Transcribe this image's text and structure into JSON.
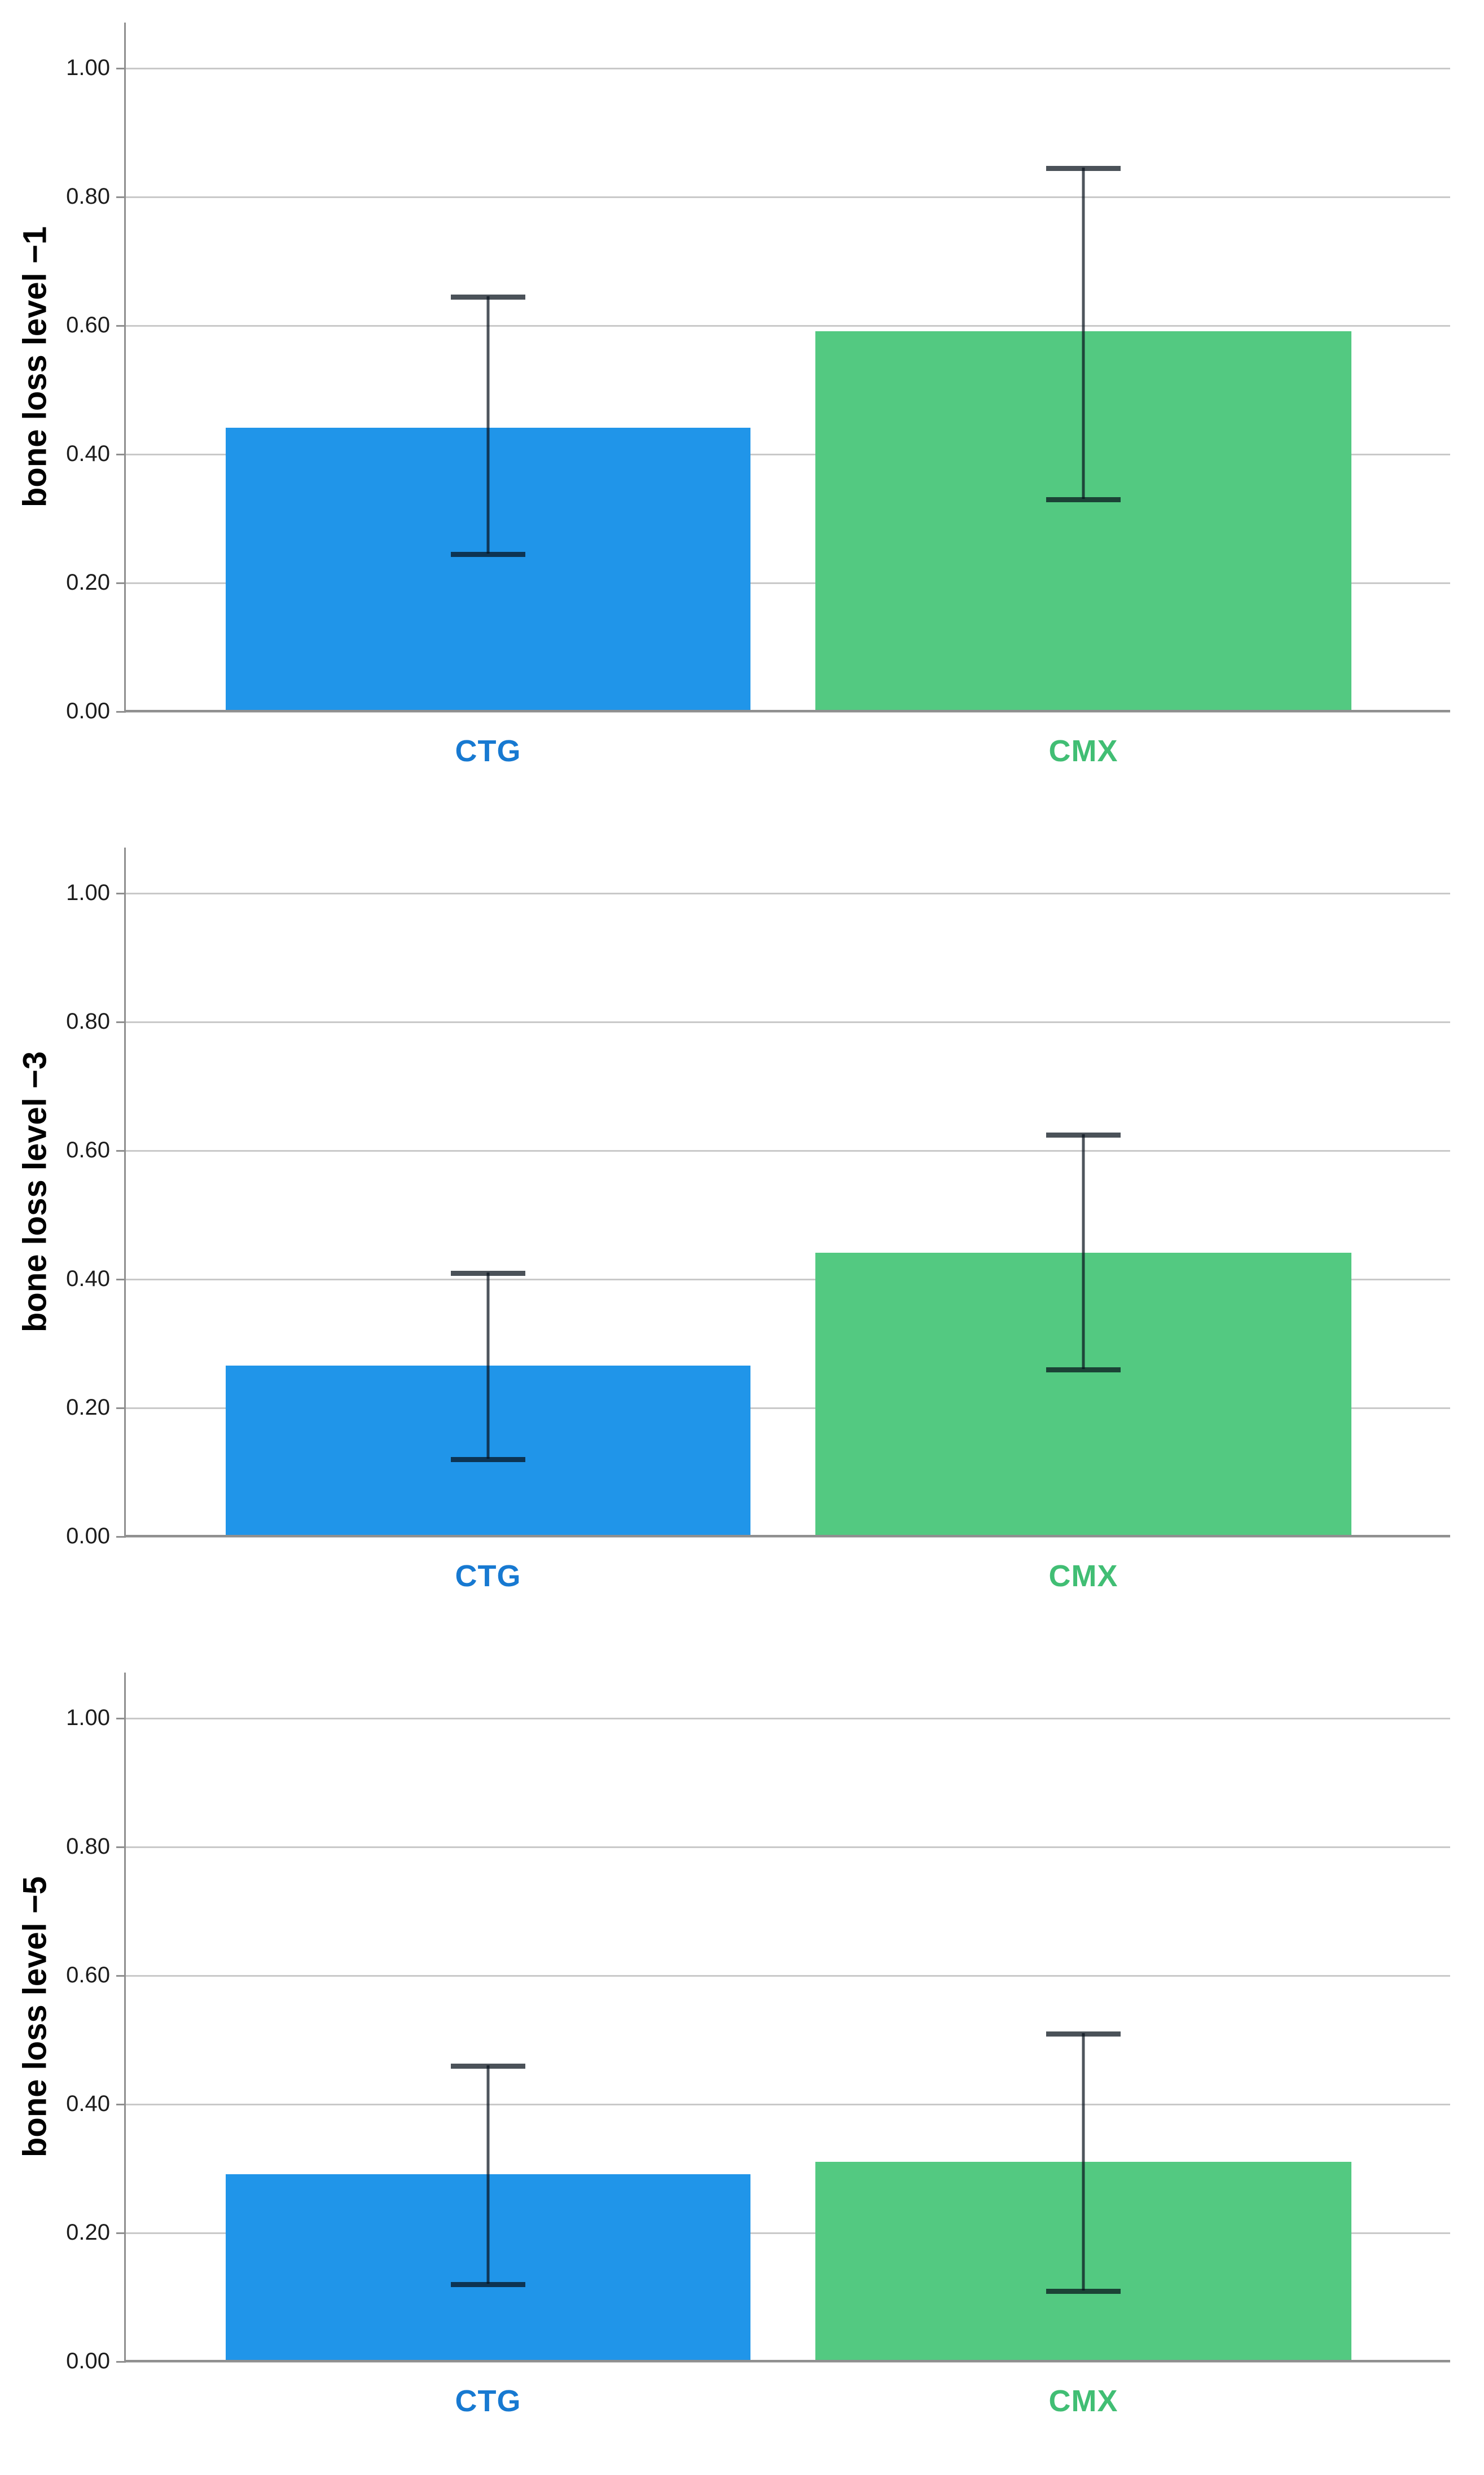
{
  "figure": {
    "description": "Three stacked bar charts comparing CTG and CMX bone loss with error bars",
    "background": "#ffffff"
  },
  "colors": {
    "bar_ctg": "#2095E9",
    "bar_cmx": "#53C981",
    "label_ctg": "#1779D1",
    "label_cmx": "#41BE74",
    "gridline": "#C9C9C9",
    "axis": "#8F8F8F",
    "error_bar": "rgba(10,20,30,0.72)"
  },
  "chart_data": [
    {
      "type": "bar",
      "title": "",
      "ylabel": "bone loss level −1",
      "xlabel": "",
      "categories": [
        "CTG",
        "CMX"
      ],
      "values": [
        0.44,
        0.59
      ],
      "error_low": [
        0.245,
        0.33
      ],
      "error_high": [
        0.645,
        0.845
      ],
      "ylim": [
        0,
        1.07
      ],
      "yticks": [
        "0.00",
        "0.20",
        "0.40",
        "0.60",
        "0.80",
        "1.00"
      ],
      "ytick_values": [
        0,
        0.2,
        0.4,
        0.6,
        0.8,
        1.0
      ],
      "grid": "horizontal",
      "legend": "none"
    },
    {
      "type": "bar",
      "title": "",
      "ylabel": "bone loss level −3",
      "xlabel": "",
      "categories": [
        "CTG",
        "CMX"
      ],
      "values": [
        0.265,
        0.44
      ],
      "error_low": [
        0.12,
        0.26
      ],
      "error_high": [
        0.41,
        0.625
      ],
      "ylim": [
        0,
        1.07
      ],
      "yticks": [
        "0.00",
        "0.20",
        "0.40",
        "0.60",
        "0.80",
        "1.00"
      ],
      "ytick_values": [
        0,
        0.2,
        0.4,
        0.6,
        0.8,
        1.0
      ],
      "grid": "horizontal",
      "legend": "none"
    },
    {
      "type": "bar",
      "title": "",
      "ylabel": "bone loss level −5",
      "xlabel": "",
      "categories": [
        "CTG",
        "CMX"
      ],
      "values": [
        0.29,
        0.31
      ],
      "error_low": [
        0.12,
        0.11
      ],
      "error_high": [
        0.46,
        0.51
      ],
      "ylim": [
        0,
        1.07
      ],
      "yticks": [
        "0.00",
        "0.20",
        "0.40",
        "0.60",
        "0.80",
        "1.00"
      ],
      "ytick_values": [
        0,
        0.2,
        0.4,
        0.6,
        0.8,
        1.0
      ],
      "grid": "horizontal",
      "legend": "none"
    }
  ]
}
